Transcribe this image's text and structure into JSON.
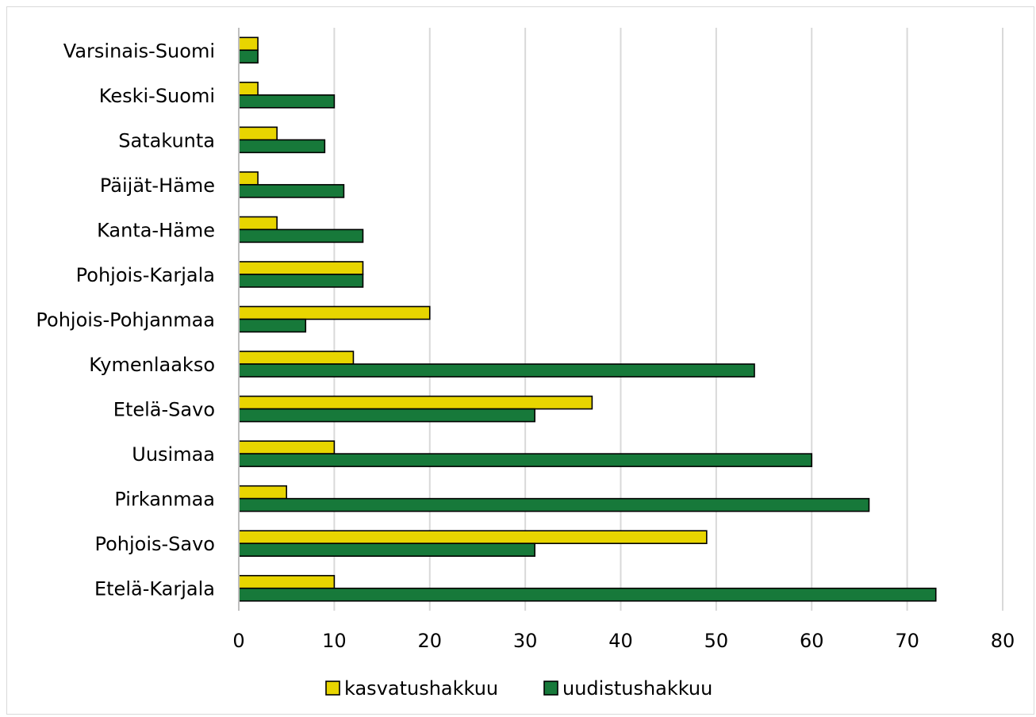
{
  "chart_data": {
    "type": "bar",
    "orientation": "horizontal",
    "categories": [
      "Varsinais-Suomi",
      "Keski-Suomi",
      "Satakunta",
      "Päijät-Häme",
      "Kanta-Häme",
      "Pohjois-Karjala",
      "Pohjois-Pohjanmaa",
      "Kymenlaakso",
      "Etelä-Savo",
      "Uusimaa",
      "Pirkanmaa",
      "Pohjois-Savo",
      "Etelä-Karjala"
    ],
    "series": [
      {
        "name": "kasvatushakkuu",
        "color": "#e8d500",
        "values": [
          2,
          2,
          4,
          2,
          4,
          13,
          20,
          12,
          37,
          10,
          5,
          49,
          10
        ]
      },
      {
        "name": "uudistushakkuu",
        "color": "#17793a",
        "values": [
          2,
          10,
          9,
          11,
          13,
          13,
          7,
          54,
          31,
          60,
          66,
          31,
          73
        ]
      }
    ],
    "xlim": [
      0,
      80
    ],
    "xticks": [
      0,
      10,
      20,
      30,
      40,
      50,
      60,
      70,
      80
    ],
    "xtick_labels": [
      "0",
      "10",
      "20",
      "30",
      "40",
      "50",
      "60",
      "70",
      "80"
    ],
    "grid": "vertical",
    "legend": "bottom",
    "title": "",
    "xlabel": "",
    "ylabel": ""
  }
}
